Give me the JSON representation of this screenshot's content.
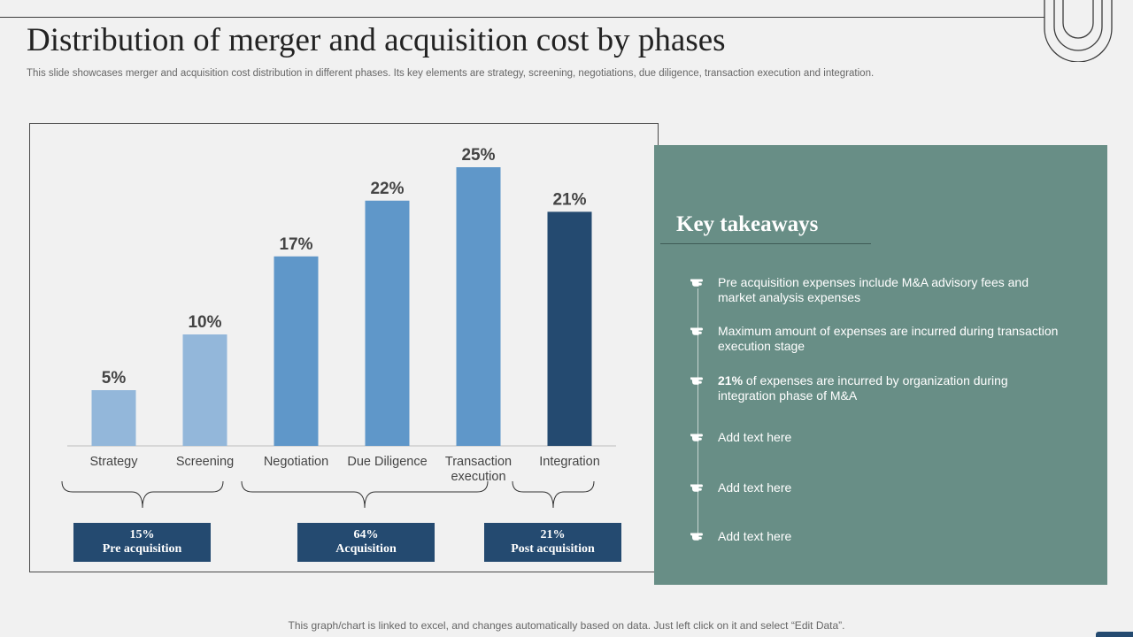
{
  "header": {
    "title": "Distribution of merger and acquisition cost by phases",
    "subtitle": "This slide showcases merger and acquisition cost distribution in different phases. Its key elements are strategy, screening, negotiations, due diligence, transaction execution and integration."
  },
  "chart_data": {
    "type": "bar",
    "categories": [
      "Strategy",
      "Screening",
      "Negotiation",
      "Due Diligence",
      "Transaction execution",
      "Integration"
    ],
    "values": [
      5,
      10,
      17,
      22,
      25,
      21
    ],
    "value_labels": [
      "5%",
      "10%",
      "17%",
      "22%",
      "25%",
      "21%"
    ],
    "unit": "%",
    "ylim": [
      0,
      25
    ],
    "bar_colors": [
      "#93b7da",
      "#93b7da",
      "#5f97c9",
      "#5f97c9",
      "#5f97c9",
      "#244a70"
    ],
    "grid": false,
    "legend": "none",
    "title": "",
    "xlabel": "",
    "ylabel": ""
  },
  "phases": [
    {
      "pct": "15%",
      "label": "Pre acquisition"
    },
    {
      "pct": "64%",
      "label": "Acquisition"
    },
    {
      "pct": "21%",
      "label": "Post acquisition"
    }
  ],
  "panel": {
    "title": "Key takeaways",
    "items": [
      {
        "bold": "",
        "text": "Pre acquisition expenses include M&A  advisory fees and market analysis expenses"
      },
      {
        "bold": "",
        "text": "Maximum  amount of expenses are incurred during transaction execution stage"
      },
      {
        "bold": "21%",
        "text": " of expenses are incurred by organization during integration phase of M&A"
      },
      {
        "bold": "",
        "text": "Add text here"
      },
      {
        "bold": "",
        "text": "Add text here"
      },
      {
        "bold": "",
        "text": "Add text here"
      }
    ],
    "bullet_icon": "pointing-hand-icon",
    "color": "#688e86"
  },
  "footer": {
    "note": "This graph/chart is linked to excel,  and changes automatically based on data. Just left click on it and select “Edit Data”."
  }
}
